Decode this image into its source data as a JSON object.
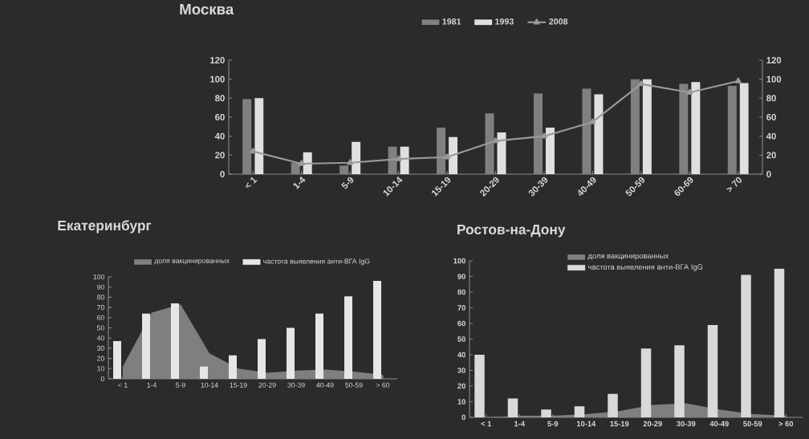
{
  "chart_data": [
    {
      "type": "bar",
      "title": "Москва",
      "categories": [
        "< 1",
        "1-4",
        "5-9",
        "10-14",
        "15-19",
        "20-29",
        "30-39",
        "40-49",
        "50-59",
        "60-69",
        "> 70"
      ],
      "series": [
        {
          "name": "1981",
          "color": "#808080",
          "values": [
            79,
            12,
            9,
            29,
            49,
            64,
            85,
            90,
            100,
            95,
            93
          ]
        },
        {
          "name": "1993",
          "color": "#e0e0e0",
          "values": [
            80,
            23,
            34,
            29,
            39,
            44,
            49,
            84,
            100,
            97,
            96
          ]
        },
        {
          "name": "2008",
          "type": "line",
          "axis": "y2",
          "marker": "triangle",
          "color": "#9a9a9a",
          "values": [
            24,
            11,
            12,
            16,
            18,
            35,
            40,
            55,
            95,
            86,
            98
          ]
        }
      ],
      "ylim": [
        0,
        120
      ],
      "yticks": [
        0,
        20,
        40,
        60,
        80,
        100,
        120
      ],
      "y2lim": [
        0,
        120
      ],
      "y2ticks": [
        0,
        20,
        40,
        60,
        80,
        100,
        120
      ],
      "legend": "top"
    },
    {
      "type": "bar",
      "title": "Екатеринбург",
      "categories": [
        "< 1",
        "1-4",
        "5-9",
        "10-14",
        "15-19",
        "20-29",
        "30-39",
        "40-49",
        "50-59",
        "> 60"
      ],
      "series": [
        {
          "name": "доля вакцинированных",
          "type": "area",
          "color": "#7f7f7f",
          "values": [
            12,
            65,
            73,
            25,
            10,
            6,
            8,
            9,
            7,
            4
          ]
        },
        {
          "name": "частота выявления анти-ВГА IgG",
          "color": "#e6e6e6",
          "values": [
            37,
            64,
            74,
            12,
            23,
            39,
            50,
            64,
            81,
            96
          ]
        }
      ],
      "ylim": [
        0,
        100
      ],
      "yticks": [
        0,
        10,
        20,
        30,
        40,
        50,
        60,
        70,
        80,
        90,
        100
      ],
      "legend": "top"
    },
    {
      "type": "bar",
      "title": "Ростов-на-Дону",
      "categories": [
        "< 1",
        "1-4",
        "5-9",
        "10-14",
        "15-19",
        "20-29",
        "30-39",
        "40-49",
        "50-59",
        "> 60"
      ],
      "series": [
        {
          "name": "доля вакцинированных",
          "type": "area",
          "color": "#7f7f7f",
          "values": [
            0,
            1,
            1,
            2,
            4,
            8,
            9,
            5,
            2,
            1
          ]
        },
        {
          "name": "частота выявления анти-ВГА IgG",
          "color": "#d9d9d9",
          "values": [
            40,
            12,
            5,
            7,
            15,
            44,
            46,
            59,
            91,
            95
          ]
        }
      ],
      "ylim": [
        0,
        100
      ],
      "yticks": [
        0,
        10,
        20,
        30,
        40,
        50,
        60,
        70,
        80,
        90,
        100
      ],
      "legend": "top"
    }
  ]
}
